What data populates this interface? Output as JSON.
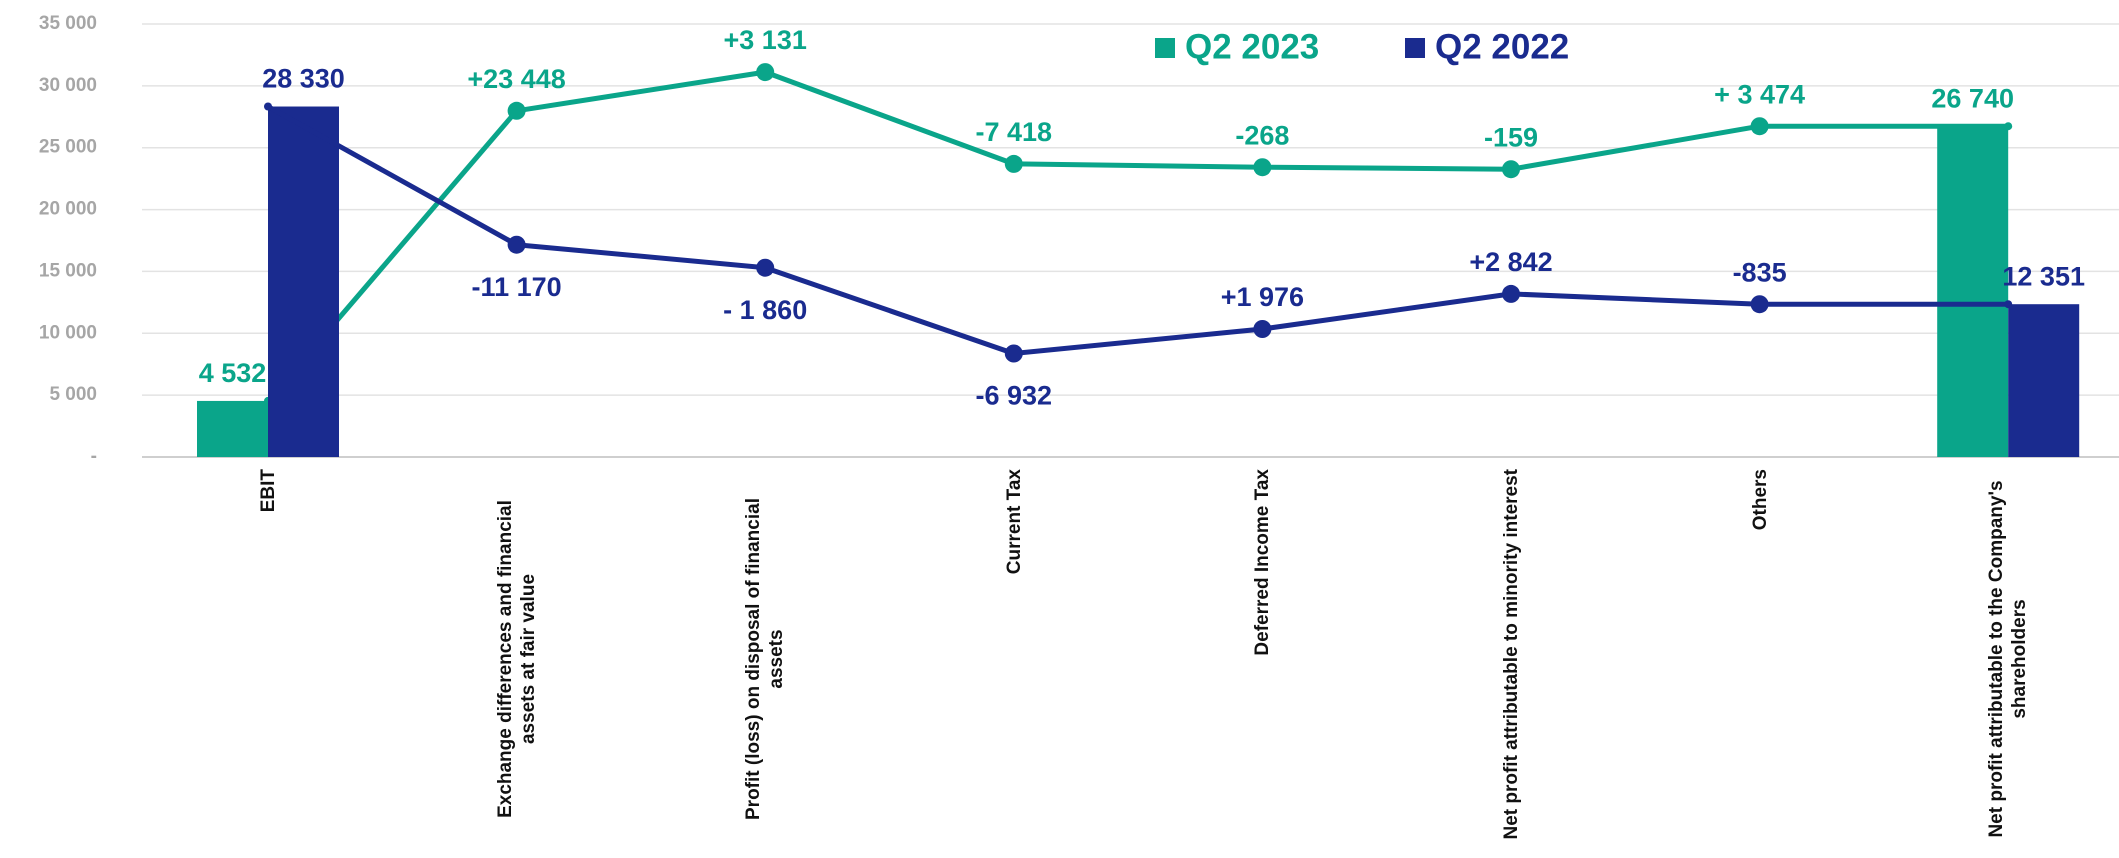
{
  "chart_data": {
    "type": "waterfall",
    "categories": [
      "EBIT",
      "Exchange differences and financial assets at fair value",
      "Profit (loss) on disposal of financial assets",
      "Current Tax",
      "Deferred Income Tax",
      "Net profit attributable to minority interest",
      "Others",
      "Net profit attributable to the Company's shareholders"
    ],
    "measure": [
      "absolute",
      "relative",
      "relative",
      "relative",
      "relative",
      "relative",
      "relative",
      "total"
    ],
    "series": [
      {
        "name": "Q2 2023",
        "color": "#0aa58a",
        "values": [
          4532,
          23448,
          3131,
          -7418,
          -268,
          -159,
          3474,
          26740
        ],
        "value_labels": [
          "4 532",
          "+23 448",
          "+3 131",
          "-7 418",
          "-268",
          "-159",
          "+ 3 474",
          "26 740"
        ]
      },
      {
        "name": "Q2 2022",
        "color": "#1a2b8f",
        "values": [
          28330,
          -11170,
          -1860,
          -6932,
          1976,
          2842,
          -835,
          12351
        ],
        "value_labels": [
          "28 330",
          "-11 170",
          "- 1 860",
          "-6 932",
          "+1 976",
          "+2 842",
          "-835",
          "12 351"
        ]
      }
    ],
    "ylim": [
      0,
      35000
    ],
    "yticks": [
      {
        "value": 0,
        "label": "-"
      },
      {
        "value": 5000,
        "label": "5 000"
      },
      {
        "value": 10000,
        "label": "10 000"
      },
      {
        "value": 15000,
        "label": "15 000"
      },
      {
        "value": 20000,
        "label": "20 000"
      },
      {
        "value": 25000,
        "label": "25 000"
      },
      {
        "value": 30000,
        "label": "30 000"
      },
      {
        "value": 35000,
        "label": "35 000"
      }
    ],
    "grid": true,
    "legend": "top"
  }
}
